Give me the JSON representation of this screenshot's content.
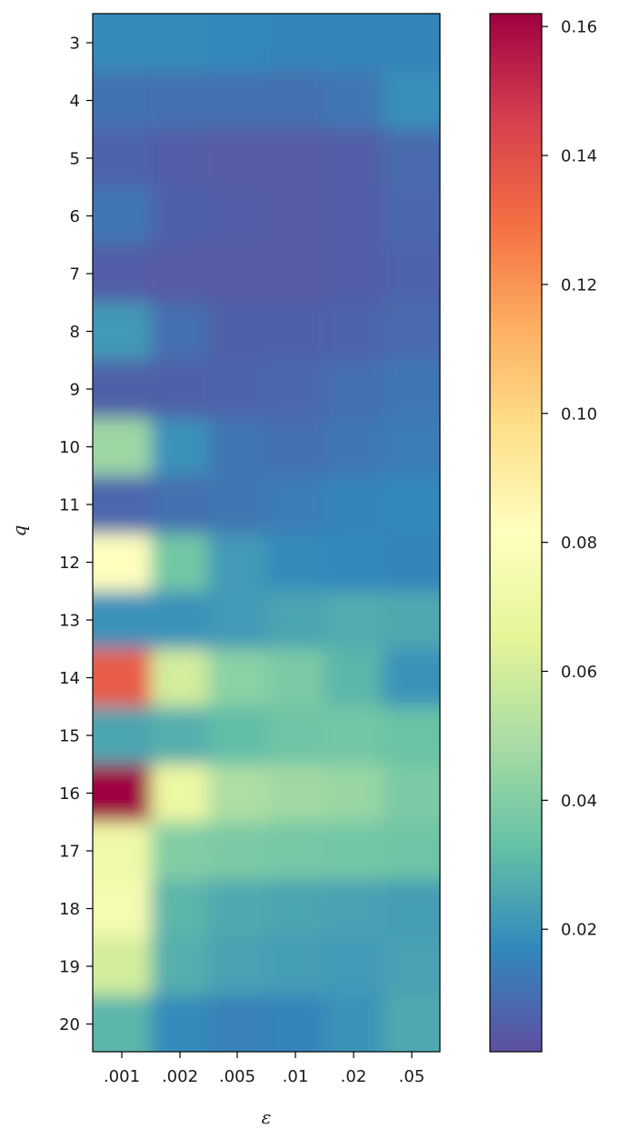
{
  "chart_data": {
    "type": "heatmap",
    "title": "",
    "xlabel": "ε",
    "ylabel": "q",
    "x_categories": [
      ".001",
      ".002",
      ".005",
      ".01",
      ".02",
      ".05"
    ],
    "y_categories": [
      "3",
      "4",
      "5",
      "6",
      "7",
      "8",
      "9",
      "10",
      "11",
      "12",
      "13",
      "14",
      "15",
      "16",
      "17",
      "18",
      "19",
      "20"
    ],
    "values": [
      [
        0.018,
        0.018,
        0.017,
        0.016,
        0.016,
        0.016
      ],
      [
        0.011,
        0.01,
        0.01,
        0.01,
        0.012,
        0.019
      ],
      [
        0.007,
        0.005,
        0.004,
        0.004,
        0.005,
        0.009
      ],
      [
        0.012,
        0.006,
        0.005,
        0.004,
        0.005,
        0.008
      ],
      [
        0.005,
        0.004,
        0.004,
        0.004,
        0.005,
        0.007
      ],
      [
        0.022,
        0.01,
        0.006,
        0.006,
        0.007,
        0.009
      ],
      [
        0.006,
        0.006,
        0.007,
        0.008,
        0.01,
        0.012
      ],
      [
        0.046,
        0.02,
        0.012,
        0.01,
        0.012,
        0.014
      ],
      [
        0.008,
        0.01,
        0.012,
        0.014,
        0.016,
        0.017
      ],
      [
        0.082,
        0.036,
        0.022,
        0.018,
        0.017,
        0.016
      ],
      [
        0.02,
        0.02,
        0.022,
        0.025,
        0.027,
        0.026
      ],
      [
        0.136,
        0.06,
        0.042,
        0.038,
        0.03,
        0.02
      ],
      [
        0.025,
        0.028,
        0.032,
        0.035,
        0.036,
        0.034
      ],
      [
        0.162,
        0.07,
        0.05,
        0.047,
        0.045,
        0.038
      ],
      [
        0.072,
        0.04,
        0.038,
        0.037,
        0.036,
        0.035
      ],
      [
        0.075,
        0.03,
        0.026,
        0.025,
        0.024,
        0.023
      ],
      [
        0.06,
        0.028,
        0.024,
        0.023,
        0.022,
        0.024
      ],
      [
        0.03,
        0.018,
        0.015,
        0.016,
        0.02,
        0.026
      ]
    ],
    "colormap": "Spectral_r",
    "colormap_stops": [
      "#5e4fa2",
      "#3288bd",
      "#66c2a5",
      "#abdda4",
      "#e6f598",
      "#ffffbf",
      "#fee08b",
      "#fdae61",
      "#f46d43",
      "#d53e4f",
      "#9e0142"
    ],
    "vmin": 0.001,
    "vmax": 0.162,
    "colorbar": {
      "ticks": [
        0.02,
        0.04,
        0.06,
        0.08,
        0.1,
        0.12,
        0.14,
        0.16
      ],
      "tick_labels": [
        "0.02",
        "0.04",
        "0.06",
        "0.08",
        "0.10",
        "0.12",
        "0.14",
        "0.16"
      ]
    },
    "grid": false,
    "interpolation": "smooth"
  }
}
